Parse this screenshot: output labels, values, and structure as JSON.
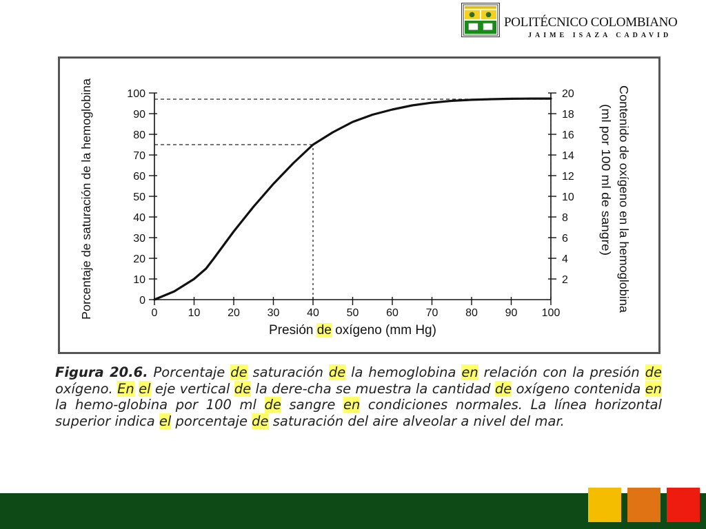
{
  "header": {
    "institution": "POLITÉCNICO COLOMBIANO",
    "subtitle": "JAIME ISAZA CADAVID"
  },
  "colors": {
    "footer_bar": "#0d4a16",
    "squares": [
      "#f5bd00",
      "#e07414",
      "#ee1c0e"
    ],
    "highlight": "#ffff66"
  },
  "chart_data": {
    "type": "line",
    "xlabel_parts": [
      "Presión ",
      "de",
      " oxígeno (mm Hg)"
    ],
    "ylabel": "Porcentaje de saturación de la hemoglobina",
    "y2label_lines": [
      "Contenido de oxígeno en la hemoglobina",
      "(ml por 100 ml de sangre)"
    ],
    "xlim": [
      0,
      100
    ],
    "ylim": [
      0,
      100
    ],
    "y2lim": [
      0,
      20
    ],
    "xticks": [
      0,
      10,
      20,
      30,
      40,
      50,
      60,
      70,
      80,
      90,
      100
    ],
    "yticks": [
      0,
      10,
      20,
      30,
      40,
      50,
      60,
      70,
      80,
      90,
      100
    ],
    "y2ticks": [
      2,
      4,
      6,
      8,
      10,
      12,
      14,
      16,
      18,
      20
    ],
    "series": [
      {
        "x": [
          0,
          5,
          10,
          13,
          15,
          20,
          25,
          30,
          35,
          40,
          45,
          50,
          55,
          60,
          65,
          70,
          75,
          80,
          85,
          90,
          95,
          100
        ],
        "y": [
          0,
          4,
          10,
          15,
          20,
          33,
          45,
          56,
          66,
          75,
          81,
          86,
          89.5,
          92,
          94,
          95.3,
          96.2,
          96.7,
          97,
          97.2,
          97.3,
          97.3
        ]
      }
    ],
    "reference_lines": [
      {
        "kind": "horizontal",
        "y": 97,
        "x_to": 100
      },
      {
        "kind": "horizontal",
        "y": 75,
        "x_to": 40
      },
      {
        "kind": "vertical",
        "x": 40,
        "y_to": 75
      },
      {
        "kind": "vertical",
        "x": 100,
        "y_to": 97
      }
    ]
  },
  "caption": {
    "label": "Figura 20.6.",
    "segments": [
      {
        "t": " Porcentaje ",
        "h": false
      },
      {
        "t": "de",
        "h": true
      },
      {
        "t": " saturación ",
        "h": false
      },
      {
        "t": "de",
        "h": true
      },
      {
        "t": " la hemoglobina ",
        "h": false
      },
      {
        "t": "en",
        "h": true
      },
      {
        "t": " relación con la presión ",
        "h": false
      },
      {
        "t": "de",
        "h": true
      },
      {
        "t": " oxígeno. ",
        "h": false
      },
      {
        "t": "En",
        "h": true
      },
      {
        "t": " ",
        "h": false
      },
      {
        "t": "el",
        "h": true
      },
      {
        "t": " eje vertical ",
        "h": false
      },
      {
        "t": "de",
        "h": true
      },
      {
        "t": " la dere-cha se muestra la cantidad ",
        "h": false
      },
      {
        "t": "de",
        "h": true
      },
      {
        "t": " oxígeno contenida ",
        "h": false
      },
      {
        "t": "en",
        "h": true
      },
      {
        "t": " la hemo-globina por 100 ml ",
        "h": false
      },
      {
        "t": "de",
        "h": true
      },
      {
        "t": " sangre ",
        "h": false
      },
      {
        "t": "en",
        "h": true
      },
      {
        "t": " condiciones normales. La línea horizontal superior indica ",
        "h": false
      },
      {
        "t": "el",
        "h": true
      },
      {
        "t": " porcentaje ",
        "h": false
      },
      {
        "t": "de",
        "h": true
      },
      {
        "t": " saturación del aire alveolar a nivel del mar.",
        "h": false
      }
    ]
  }
}
